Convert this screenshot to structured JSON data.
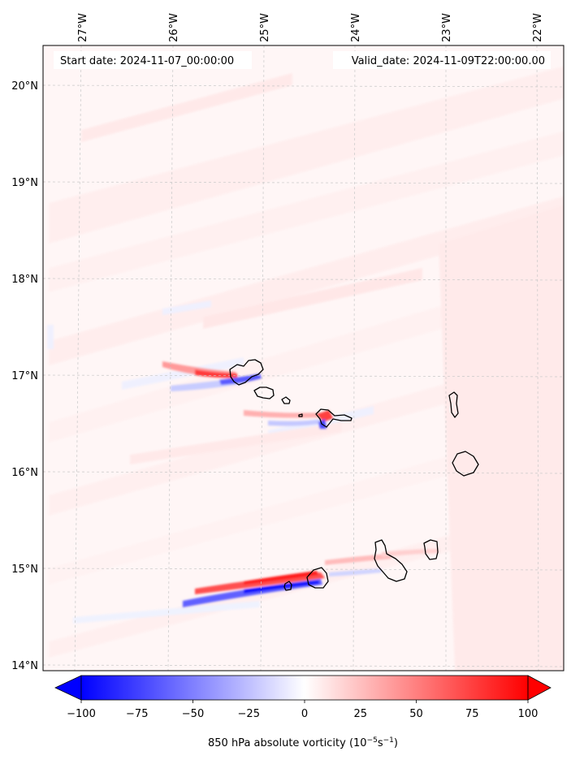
{
  "annotations": {
    "start": "Start date: 2024-11-07_00:00:00",
    "valid": "Valid_date: 2024-11-09T22:00:00.00"
  },
  "axes": {
    "lon_ticks": [
      "27°W",
      "26°W",
      "25°W",
      "24°W",
      "23°W",
      "22°W"
    ],
    "lat_ticks": [
      "20°N",
      "19°N",
      "18°N",
      "17°N",
      "16°N",
      "15°N",
      "14°N"
    ]
  },
  "colorbar": {
    "ticks": [
      "−100",
      "−75",
      "−50",
      "−25",
      "0",
      "25",
      "50",
      "75",
      "100"
    ],
    "label_main": "850 hPa absolute vorticity (10",
    "label_exp1": "−5",
    "label_mid": "s",
    "label_exp2": "−1",
    "label_end": ")",
    "min": -100,
    "max": 100,
    "colormap": "bwr",
    "extend": "both"
  },
  "colors": {
    "blue": "#0000ff",
    "white": "#ffffff",
    "red": "#ff0000",
    "coast": "#000000",
    "grid": "#b0b0b0"
  }
}
